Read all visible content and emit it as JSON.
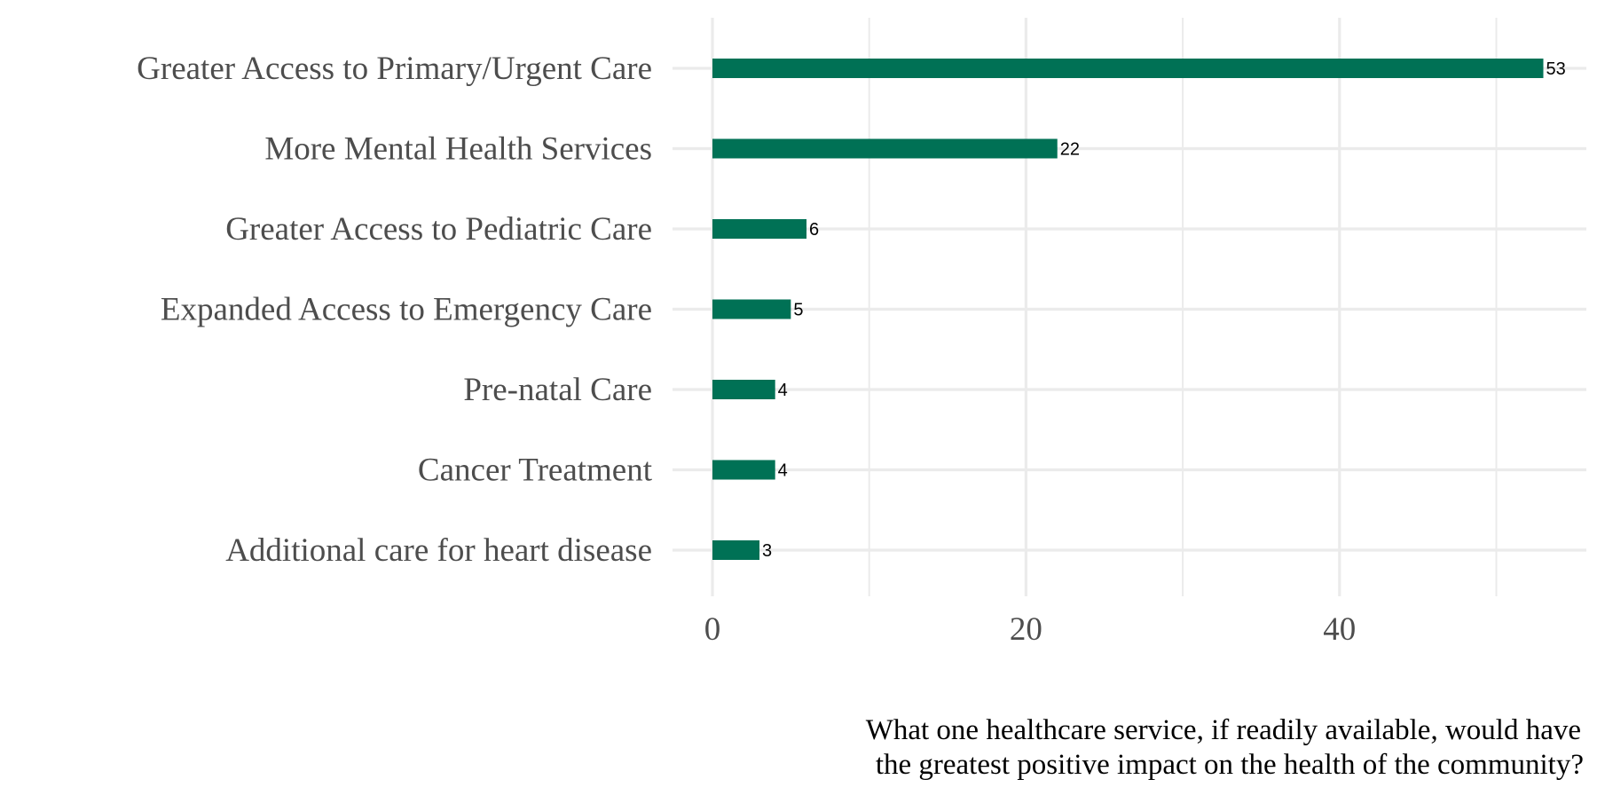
{
  "chart_data": {
    "type": "bar",
    "orientation": "horizontal",
    "categories": [
      "Greater Access to Primary/Urgent Care",
      "More Mental Health Services",
      "Greater Access to Pediatric Care",
      "Expanded Access to Emergency Care",
      "Pre-natal Care",
      "Cancer Treatment",
      "Additional care for heart disease"
    ],
    "values": [
      53,
      22,
      6,
      5,
      4,
      4,
      3
    ],
    "value_labels": [
      "53",
      "22",
      "6",
      "5",
      "4",
      "4",
      "3"
    ],
    "x_ticks": [
      0,
      20,
      40
    ],
    "x_tick_labels": [
      "0",
      "20",
      "40"
    ],
    "xlim": [
      0,
      55.6
    ],
    "grid": true,
    "bar_color": "#007155",
    "grid_color": "#ebebeb",
    "caption": [
      "What one healthcare service, if readily available, would have",
      "the greatest positive impact on the health of the community?"
    ]
  }
}
